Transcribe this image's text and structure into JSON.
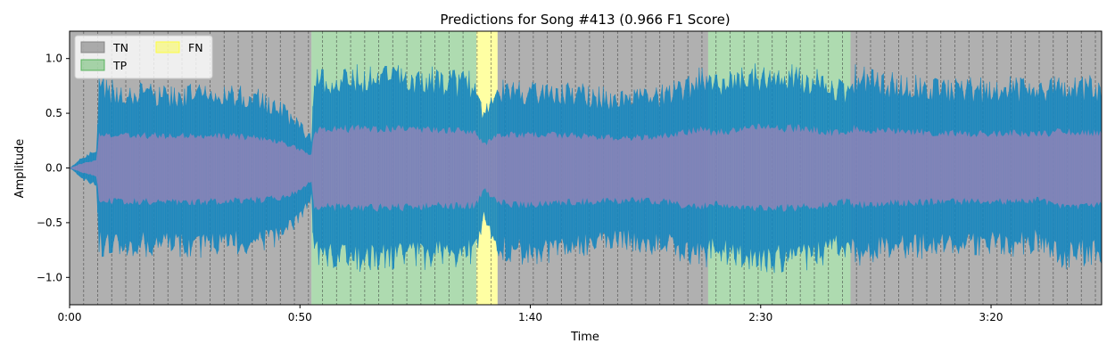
{
  "chart_data": {
    "type": "area",
    "title": "Predictions for Song #413 (0.966 F1 Score)",
    "xlabel": "Time",
    "ylabel": "Amplitude",
    "xlim": [
      0,
      224
    ],
    "ylim": [
      -1.25,
      1.25
    ],
    "x_ticks": [
      {
        "value": 0,
        "label": "0:00"
      },
      {
        "value": 50,
        "label": "0:50"
      },
      {
        "value": 100,
        "label": "1:40"
      },
      {
        "value": 150,
        "label": "2:30"
      },
      {
        "value": 200,
        "label": "3:20"
      }
    ],
    "y_ticks": [
      {
        "value": -1.0,
        "label": "−1.0"
      },
      {
        "value": -0.5,
        "label": "−0.5"
      },
      {
        "value": 0.0,
        "label": "0.0"
      },
      {
        "value": 0.5,
        "label": "0.5"
      },
      {
        "value": 1.0,
        "label": "1.0"
      }
    ],
    "legend": {
      "placement": "top-left",
      "entries": [
        {
          "label": "TN",
          "color": "#808080"
        },
        {
          "label": "TP",
          "color": "#4caf50"
        },
        {
          "label": "FN",
          "color": "#ffff33"
        }
      ]
    },
    "regions": [
      {
        "label": "TN",
        "start": 0,
        "end": 52.5
      },
      {
        "label": "TP",
        "start": 52.5,
        "end": 88.3
      },
      {
        "label": "FN",
        "start": 88.3,
        "end": 92.9
      },
      {
        "label": "TN",
        "start": 92.9,
        "end": 138.6
      },
      {
        "label": "TP",
        "start": 138.6,
        "end": 169.5
      },
      {
        "label": "TN",
        "start": 169.5,
        "end": 224
      }
    ],
    "beat_interval": 3.05,
    "waveform_envelope": {
      "x": [
        0,
        3,
        6,
        6.2,
        10,
        20,
        30,
        40,
        46,
        50,
        52.5,
        53,
        60,
        70,
        80,
        88,
        90,
        92.9,
        93,
        100,
        110,
        120,
        130,
        136,
        138.6,
        139,
        150,
        160,
        169.5,
        170,
        180,
        190,
        200,
        205,
        210,
        216,
        220,
        224
      ],
      "max": [
        0.0,
        0.12,
        0.18,
        0.85,
        0.8,
        0.78,
        0.77,
        0.75,
        0.62,
        0.45,
        0.3,
        0.9,
        0.95,
        0.95,
        0.93,
        0.88,
        0.55,
        0.8,
        0.82,
        0.8,
        0.78,
        0.72,
        0.78,
        0.92,
        0.95,
        0.85,
        0.98,
        0.95,
        0.8,
        0.95,
        0.88,
        0.85,
        0.82,
        0.85,
        0.8,
        0.9,
        0.85,
        0.85
      ],
      "min": [
        0.0,
        -0.12,
        -0.2,
        -0.82,
        -0.8,
        -0.82,
        -0.82,
        -0.78,
        -0.72,
        -0.55,
        -0.3,
        -0.92,
        -0.95,
        -0.96,
        -0.92,
        -0.9,
        -0.5,
        -0.85,
        -0.85,
        -0.9,
        -0.82,
        -0.78,
        -0.82,
        -0.95,
        -0.92,
        -0.88,
        -0.97,
        -0.95,
        -0.8,
        -0.9,
        -0.85,
        -0.82,
        -0.8,
        -0.82,
        -0.78,
        -0.95,
        -0.9,
        -0.9
      ]
    },
    "colors": {
      "waveform": "#1a87be",
      "overlay": "#c880b4",
      "TN": "#808080",
      "TP": "#4caf50",
      "FN": "#ffff33"
    },
    "grid": false
  }
}
